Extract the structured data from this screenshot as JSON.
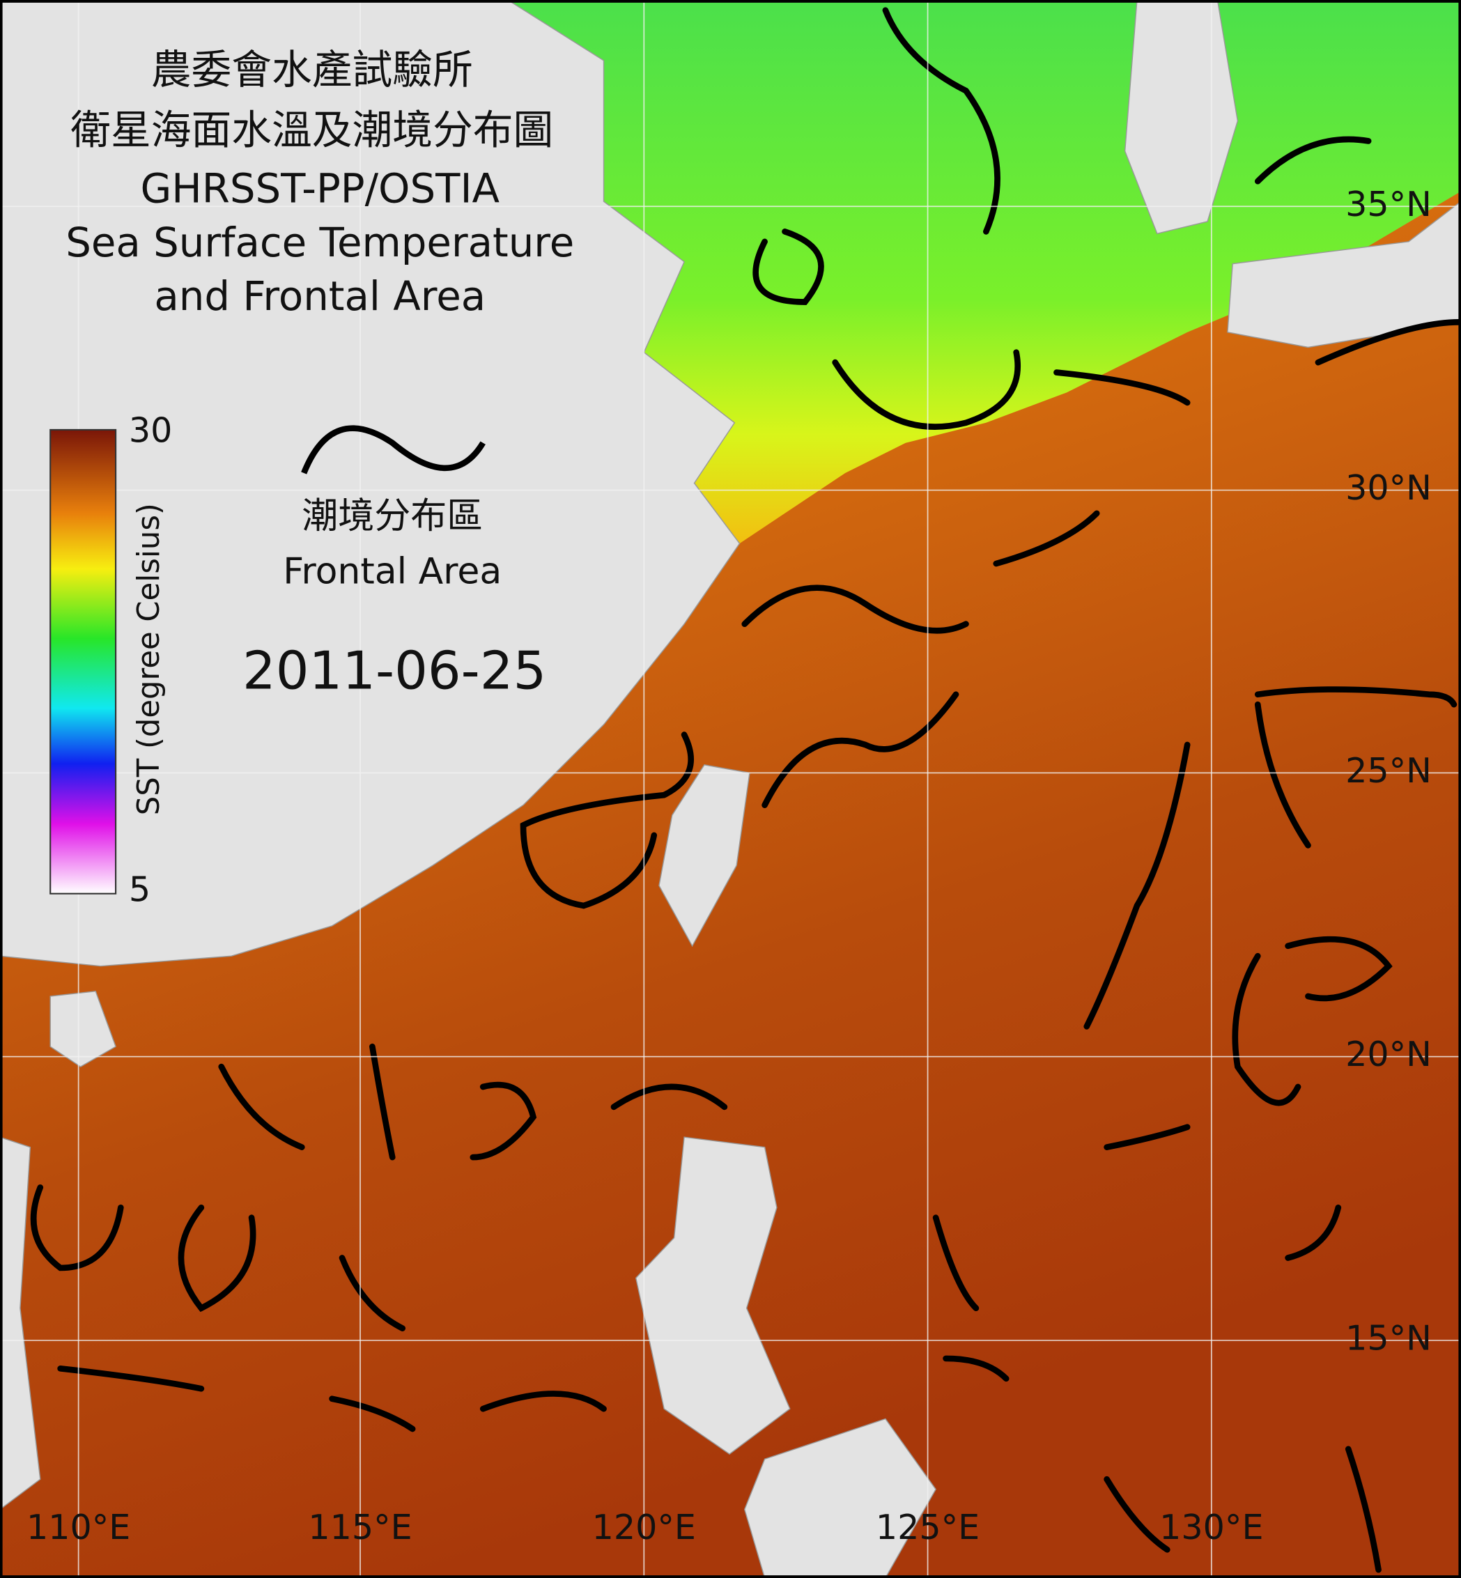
{
  "header": {
    "lines": [
      "農委會水產試驗所",
      "衛星海面水溫及潮境分布圖",
      "GHRSST-PP/OSTIA",
      "Sea Surface Temperature",
      "and Frontal Area"
    ]
  },
  "colorbar": {
    "label": "SST (degree Celsius)",
    "max": 30,
    "min": 5
  },
  "legend": {
    "zh": "潮境分布區",
    "en": "Frontal Area"
  },
  "date": "2011-06-25",
  "grid": {
    "lat_labels": [
      "35°N",
      "30°N",
      "25°N",
      "20°N",
      "15°N"
    ],
    "lon_labels": [
      "110°E",
      "115°E",
      "120°E",
      "125°E",
      "130°E"
    ]
  }
}
